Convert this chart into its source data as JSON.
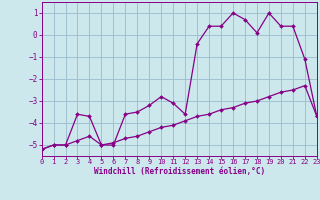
{
  "xlabel": "Windchill (Refroidissement éolien,°C)",
  "xlim": [
    0,
    23
  ],
  "ylim": [
    -5.5,
    1.5
  ],
  "yticks": [
    1,
    0,
    -1,
    -2,
    -3,
    -4,
    -5
  ],
  "xticks": [
    0,
    1,
    2,
    3,
    4,
    5,
    6,
    7,
    8,
    9,
    10,
    11,
    12,
    13,
    14,
    15,
    16,
    17,
    18,
    19,
    20,
    21,
    22,
    23
  ],
  "background_color": "#cce8ec",
  "line_color": "#880088",
  "grid_color": "#99bbcc",
  "curve1_x": [
    0,
    1,
    2,
    3,
    4,
    5,
    6,
    7,
    8,
    9,
    10,
    11,
    12,
    13,
    14,
    15,
    16,
    17,
    18,
    19,
    20,
    21,
    22,
    23
  ],
  "curve1_y": [
    -5.2,
    -5.0,
    -5.0,
    -3.6,
    -3.7,
    -5.0,
    -5.0,
    -3.6,
    -3.5,
    -3.2,
    -2.8,
    -3.1,
    -3.6,
    -0.4,
    0.4,
    0.4,
    1.0,
    0.7,
    0.1,
    1.0,
    0.4,
    0.4,
    -1.1,
    -3.7
  ],
  "curve2_x": [
    0,
    1,
    2,
    3,
    4,
    5,
    6,
    7,
    8,
    9,
    10,
    11,
    12,
    13,
    14,
    15,
    16,
    17,
    18,
    19,
    20,
    21,
    22,
    23
  ],
  "curve2_y": [
    -5.2,
    -5.0,
    -5.0,
    -4.8,
    -4.6,
    -5.0,
    -4.9,
    -4.7,
    -4.6,
    -4.4,
    -4.2,
    -4.1,
    -3.9,
    -3.7,
    -3.6,
    -3.4,
    -3.3,
    -3.1,
    -3.0,
    -2.8,
    -2.6,
    -2.5,
    -2.3,
    -3.7
  ],
  "marker": "D",
  "marker_size": 2.0,
  "linewidth": 0.9,
  "tick_fontsize": 5.0,
  "xlabel_fontsize": 5.5
}
